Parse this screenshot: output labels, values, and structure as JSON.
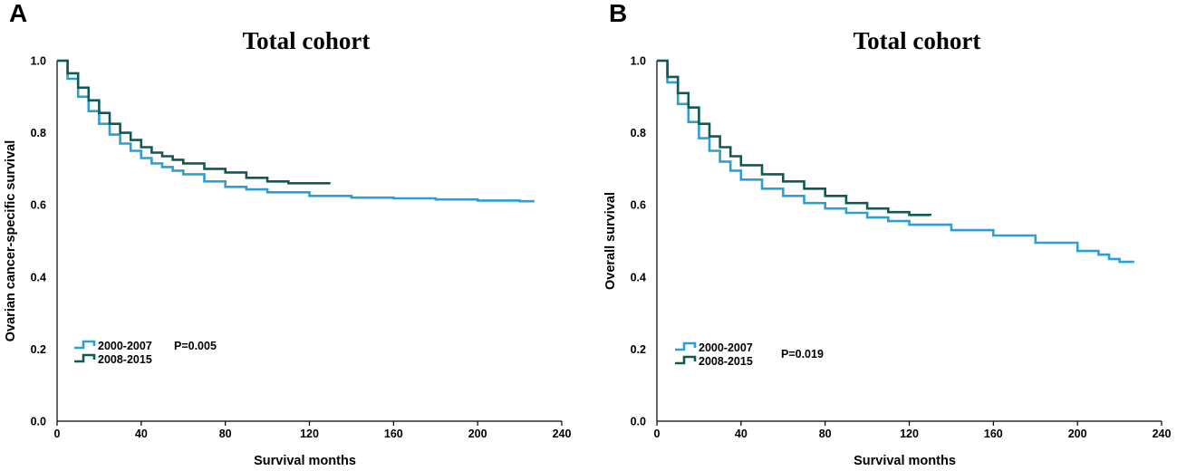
{
  "chart_data": [
    {
      "type": "line",
      "panel": "A",
      "title": "Total cohort",
      "xlabel": "Survival months",
      "ylabel": "Ovarian cancer-specific survival",
      "xlim": [
        0,
        240
      ],
      "ylim": [
        0,
        1.0
      ],
      "xticks": [
        "0",
        "40",
        "80",
        "120",
        "160",
        "200",
        "240"
      ],
      "yticks": [
        "0.0",
        "0.2",
        "0.4",
        "0.6",
        "0.8",
        "1.0"
      ],
      "pvalue": "P=0.005",
      "series": [
        {
          "name": "2000-2007",
          "color": "#2a9fd8",
          "x": [
            0,
            5,
            10,
            15,
            20,
            25,
            30,
            35,
            40,
            45,
            50,
            55,
            60,
            70,
            80,
            90,
            100,
            120,
            140,
            160,
            180,
            200,
            220,
            227
          ],
          "y": [
            1.0,
            0.95,
            0.9,
            0.86,
            0.825,
            0.795,
            0.77,
            0.75,
            0.73,
            0.715,
            0.705,
            0.695,
            0.685,
            0.665,
            0.65,
            0.643,
            0.635,
            0.625,
            0.62,
            0.618,
            0.615,
            0.612,
            0.61,
            0.61
          ]
        },
        {
          "name": "2008-2015",
          "color": "#0e5a56",
          "x": [
            0,
            5,
            10,
            15,
            20,
            25,
            30,
            35,
            40,
            45,
            50,
            55,
            60,
            70,
            80,
            90,
            100,
            110,
            120,
            130
          ],
          "y": [
            1.0,
            0.965,
            0.925,
            0.89,
            0.855,
            0.825,
            0.8,
            0.78,
            0.76,
            0.745,
            0.735,
            0.725,
            0.715,
            0.7,
            0.69,
            0.675,
            0.665,
            0.66,
            0.66,
            0.66
          ]
        }
      ]
    },
    {
      "type": "line",
      "panel": "B",
      "title": "Total cohort",
      "xlabel": "Survival months",
      "ylabel": "Overall survival",
      "xlim": [
        0,
        240
      ],
      "ylim": [
        0,
        1.0
      ],
      "xticks": [
        "0",
        "40",
        "80",
        "120",
        "160",
        "200",
        "240"
      ],
      "yticks": [
        "0.0",
        "0.2",
        "0.4",
        "0.6",
        "0.8",
        "1.0"
      ],
      "pvalue": "P=0.019",
      "series": [
        {
          "name": "2000-2007",
          "color": "#2a9fd8",
          "x": [
            0,
            5,
            10,
            15,
            20,
            25,
            30,
            35,
            40,
            50,
            60,
            70,
            80,
            90,
            100,
            110,
            120,
            140,
            160,
            180,
            200,
            210,
            215,
            220,
            227
          ],
          "y": [
            1.0,
            0.94,
            0.88,
            0.83,
            0.785,
            0.75,
            0.72,
            0.695,
            0.67,
            0.645,
            0.625,
            0.605,
            0.59,
            0.578,
            0.565,
            0.555,
            0.545,
            0.53,
            0.515,
            0.495,
            0.472,
            0.462,
            0.45,
            0.442,
            0.442
          ]
        },
        {
          "name": "2008-2015",
          "color": "#0e5a56",
          "x": [
            0,
            5,
            10,
            15,
            20,
            25,
            30,
            35,
            40,
            50,
            60,
            70,
            80,
            90,
            100,
            110,
            120,
            130
          ],
          "y": [
            1.0,
            0.955,
            0.91,
            0.87,
            0.825,
            0.79,
            0.76,
            0.735,
            0.71,
            0.685,
            0.665,
            0.645,
            0.625,
            0.605,
            0.59,
            0.58,
            0.572,
            0.57
          ]
        }
      ]
    }
  ]
}
